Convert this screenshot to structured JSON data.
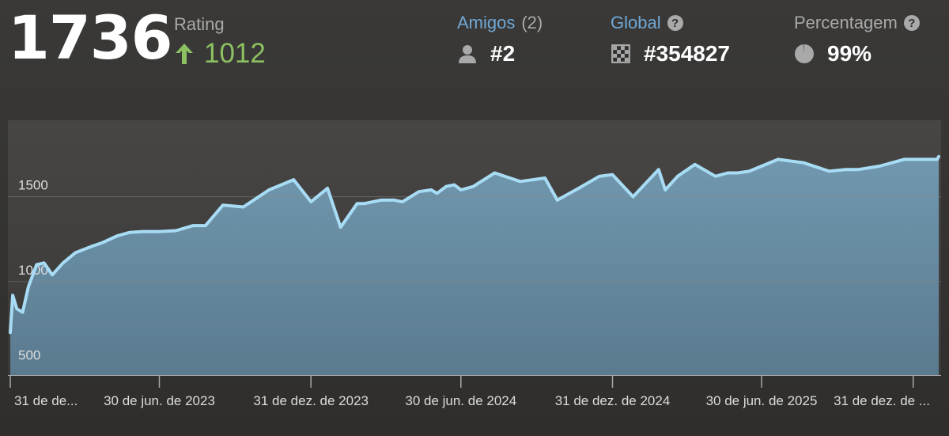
{
  "header": {
    "current_rating": "1736",
    "rating_label": "Rating",
    "rating_change": "1012",
    "friends": {
      "label": "Amigos",
      "count": "(2)",
      "rank": "#2"
    },
    "global": {
      "label": "Global",
      "help": "?",
      "rank": "#354827"
    },
    "percentile": {
      "label": "Percentagem",
      "help": "?",
      "value": "99%"
    }
  },
  "colors": {
    "accent": "#6fa8d6",
    "positive": "#8cc060",
    "line": "#a8dcf5",
    "area": "#6e95ac"
  },
  "chart_data": {
    "type": "area",
    "ylim": [
      450,
      1950
    ],
    "yticks": [
      500,
      1000,
      1500
    ],
    "x_tick_labels": [
      "31 de de...",
      "30 de jun. de 2023",
      "31 de dez. de 2023",
      "30 de jun. de 2024",
      "31 de dez. de 2024",
      "30 de jun. de 2025",
      "31 de dez. de ..."
    ],
    "x_tick_dates": [
      "2022-12-31",
      "2023-06-30",
      "2023-12-31",
      "2024-06-30",
      "2024-12-31",
      "2025-06-30",
      "2025-12-31"
    ],
    "x_range": [
      "2022-12-31",
      "2026-01-31"
    ],
    "series": [
      {
        "x": [
          "2022-12-31",
          "2023-01-03",
          "2023-01-08",
          "2023-01-15",
          "2023-01-22",
          "2023-02-01",
          "2023-02-10",
          "2023-02-20",
          "2023-03-05",
          "2023-03-20",
          "2023-04-10",
          "2023-04-22",
          "2023-05-10",
          "2023-05-25",
          "2023-06-10",
          "2023-06-30",
          "2023-07-20",
          "2023-08-10",
          "2023-08-25",
          "2023-09-15",
          "2023-10-10",
          "2023-11-10",
          "2023-12-10",
          "2023-12-31",
          "2024-01-20",
          "2024-02-05",
          "2024-02-25",
          "2024-03-05",
          "2024-03-25",
          "2024-04-10",
          "2024-04-20",
          "2024-05-10",
          "2024-05-25",
          "2024-06-01",
          "2024-06-12",
          "2024-06-22",
          "2024-06-30",
          "2024-07-15",
          "2024-08-10",
          "2024-09-10",
          "2024-10-10",
          "2024-10-25",
          "2024-11-20",
          "2024-12-15",
          "2024-12-31",
          "2025-01-25",
          "2025-02-25",
          "2025-03-05",
          "2025-03-20",
          "2025-04-10",
          "2025-05-05",
          "2025-05-20",
          "2025-06-01",
          "2025-06-15",
          "2025-07-20",
          "2025-08-20",
          "2025-09-20",
          "2025-10-10",
          "2025-10-25",
          "2025-11-20",
          "2025-12-20",
          "2026-01-10",
          "2026-01-29",
          "2026-01-31"
        ],
        "y": [
          700,
          920,
          840,
          820,
          970,
          1100,
          1110,
          1040,
          1110,
          1170,
          1210,
          1230,
          1270,
          1290,
          1295,
          1295,
          1300,
          1330,
          1330,
          1450,
          1440,
          1540,
          1600,
          1470,
          1550,
          1320,
          1460,
          1460,
          1480,
          1480,
          1470,
          1530,
          1540,
          1520,
          1560,
          1570,
          1540,
          1560,
          1640,
          1590,
          1610,
          1480,
          1550,
          1620,
          1630,
          1500,
          1660,
          1540,
          1620,
          1690,
          1620,
          1640,
          1640,
          1650,
          1720,
          1700,
          1650,
          1660,
          1660,
          1680,
          1720,
          1720,
          1720,
          1736
        ]
      }
    ]
  }
}
